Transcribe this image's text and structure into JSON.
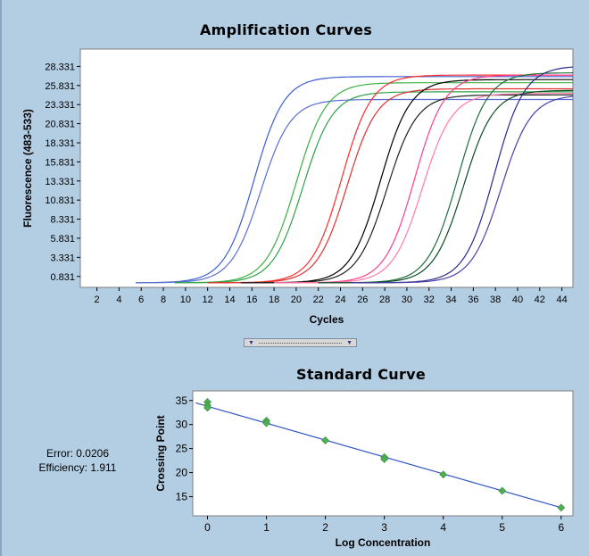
{
  "amplification": {
    "title": "Amplification Curves",
    "chart_data": {
      "type": "line",
      "title": "Amplification Curves",
      "xlabel": "Cycles",
      "ylabel": "Fluorescence (483-533)",
      "xlim": [
        0.5,
        45
      ],
      "ylim": [
        -0.6,
        30.6
      ],
      "x_ticks": [
        2,
        4,
        6,
        8,
        10,
        12,
        14,
        16,
        18,
        20,
        22,
        24,
        26,
        28,
        30,
        32,
        34,
        36,
        38,
        40,
        42,
        44
      ],
      "y_ticks": [
        0.831,
        3.331,
        5.831,
        8.331,
        10.831,
        13.331,
        15.831,
        18.331,
        20.831,
        23.331,
        25.831,
        28.331
      ],
      "y_tick_labels": [
        "0.831",
        "3.331",
        "5.831",
        "8.331",
        "10.831",
        "13.331",
        "15.831",
        "18.331",
        "20.831",
        "23.331",
        "25.831",
        "28.331"
      ],
      "grid": false,
      "baseline": 0.0,
      "series": [
        {
          "color": "#3a5fcd",
          "x_start": 5.5,
          "midpoint": 16.2,
          "slope": 1.35,
          "plateau": 27.0
        },
        {
          "color": "#5a6ecf",
          "x_start": 5.5,
          "midpoint": 16.8,
          "slope": 1.35,
          "plateau": 24.0
        },
        {
          "color": "#3cb043",
          "x_start": 9.0,
          "midpoint": 20.0,
          "slope": 1.35,
          "plateau": 26.2
        },
        {
          "color": "#2ea04a",
          "x_start": 9.0,
          "midpoint": 20.6,
          "slope": 1.35,
          "plateau": 25.0
        },
        {
          "color": "#ff2a2a",
          "x_start": 12.0,
          "midpoint": 24.1,
          "slope": 1.35,
          "plateau": 27.2
        },
        {
          "color": "#e03030",
          "x_start": 12.0,
          "midpoint": 24.6,
          "slope": 1.35,
          "plateau": 25.4
        },
        {
          "color": "#000000",
          "x_start": 15.0,
          "midpoint": 27.6,
          "slope": 1.35,
          "plateau": 26.6
        },
        {
          "color": "#202020",
          "x_start": 15.0,
          "midpoint": 28.2,
          "slope": 1.35,
          "plateau": 24.6
        },
        {
          "color": "#ff3c8c",
          "x_start": 18.0,
          "midpoint": 30.7,
          "slope": 1.35,
          "plateau": 27.2
        },
        {
          "color": "#ff7aa8",
          "x_start": 18.0,
          "midpoint": 31.4,
          "slope": 1.35,
          "plateau": 24.8
        },
        {
          "color": "#1e6e3c",
          "x_start": 22.0,
          "midpoint": 34.6,
          "slope": 1.35,
          "plateau": 27.5
        },
        {
          "color": "#0d4a28",
          "x_start": 22.0,
          "midpoint": 35.1,
          "slope": 1.35,
          "plateau": 25.2
        },
        {
          "color": "#2a2a8a",
          "x_start": 25.0,
          "midpoint": 37.9,
          "slope": 1.35,
          "plateau": 28.4
        },
        {
          "color": "#4b3fa8",
          "x_start": 25.0,
          "midpoint": 38.5,
          "slope": 1.35,
          "plateau": 24.6
        }
      ]
    }
  },
  "standard": {
    "title": "Standard Curve",
    "chart_data": {
      "type": "scatter",
      "title": "Standard Curve",
      "xlabel": "Log Concentration",
      "ylabel": "Crossing Point",
      "xlim": [
        -0.25,
        6.2
      ],
      "ylim": [
        11.0,
        37.0
      ],
      "x_ticks": [
        0,
        1,
        2,
        3,
        4,
        5,
        6
      ],
      "y_ticks": [
        15,
        20,
        25,
        30,
        35
      ],
      "grid": false,
      "points": [
        {
          "x": 0,
          "y": 34.7
        },
        {
          "x": 0,
          "y": 34.0
        },
        {
          "x": 0,
          "y": 33.5
        },
        {
          "x": 1,
          "y": 30.8
        },
        {
          "x": 1,
          "y": 30.3
        },
        {
          "x": 2,
          "y": 26.7
        },
        {
          "x": 3,
          "y": 23.2
        },
        {
          "x": 3,
          "y": 22.8
        },
        {
          "x": 4,
          "y": 19.6
        },
        {
          "x": 5,
          "y": 16.2
        },
        {
          "x": 6,
          "y": 12.7
        }
      ],
      "fit_line": {
        "x": [
          -0.2,
          6.0
        ],
        "y": [
          34.5,
          12.7
        ]
      },
      "point_color": "#4caf50",
      "line_color": "#2f55c8"
    },
    "error_label": "Error: 0.0206",
    "efficiency_label": "Efficiency: 1.911"
  },
  "splitter": {
    "arrow_icon": "triangle-down-icon"
  }
}
